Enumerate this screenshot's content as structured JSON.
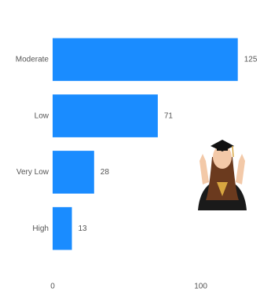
{
  "chart_data": {
    "type": "bar",
    "orientation": "horizontal",
    "categories": [
      "Moderate",
      "Low",
      "Very Low",
      "High"
    ],
    "values": [
      125,
      71,
      28,
      13
    ],
    "color": "#1a8cff",
    "xlim": [
      0,
      140
    ],
    "xticks": [
      0,
      100
    ],
    "grid": false
  }
}
